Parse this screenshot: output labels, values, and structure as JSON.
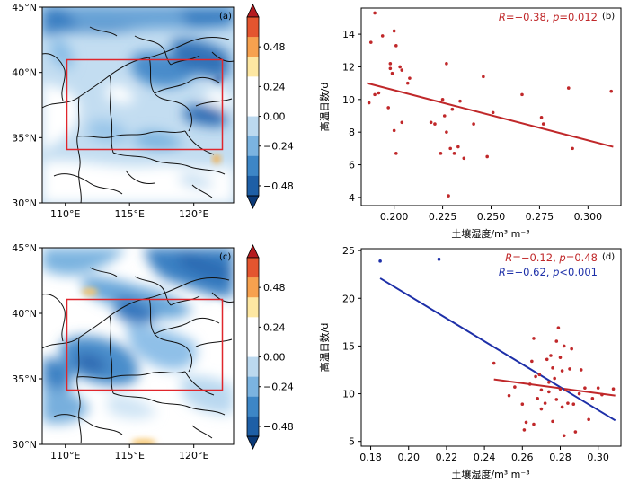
{
  "colormap": {
    "levels": [
      -0.48,
      -0.24,
      0.0,
      0.24,
      0.48
    ],
    "level_labels": [
      "−0.48",
      "−0.24",
      "0.00",
      "0.24",
      "0.48"
    ],
    "colors": [
      "#0b3a78",
      "#1e5fa6",
      "#3d86c6",
      "#7bb3e0",
      "#bcd9ef",
      "#ffffff",
      "#ffffff",
      "#fde7a2",
      "#f6a14f",
      "#e4552f",
      "#b41b1f"
    ]
  },
  "maps": [
    {
      "label": "(a)",
      "lat_ticks": [
        "45°N",
        "40°N",
        "35°N",
        "30°N"
      ],
      "lon_ticks": [
        "110°E",
        "115°E",
        "120°E"
      ],
      "box": {
        "lon": [
          110,
          122
        ],
        "lat": [
          34,
          41
        ]
      }
    },
    {
      "label": "(c)",
      "lat_ticks": [
        "45°N",
        "40°N",
        "35°N",
        "30°N"
      ],
      "lon_ticks": [
        "110°E",
        "115°E",
        "120°E"
      ],
      "box": {
        "lon": [
          110,
          122
        ],
        "lat": [
          34,
          41
        ]
      }
    }
  ],
  "chart_data": [
    {
      "type": "scatter",
      "label": "(b)",
      "xlabel": "土壤湿度/m³ m⁻³",
      "ylabel": "高温日数/d",
      "xlim": [
        0.183,
        0.317
      ],
      "ylim": [
        3.5,
        15.6
      ],
      "xticks": [
        0.2,
        0.225,
        0.25,
        0.275,
        0.3
      ],
      "xtick_labels": [
        "0.200",
        "0.225",
        "0.250",
        "0.275",
        "0.300"
      ],
      "yticks": [
        4,
        6,
        8,
        10,
        12,
        14
      ],
      "ytick_labels": [
        "4",
        "6",
        "8",
        "10",
        "12",
        "14"
      ],
      "stats": [
        {
          "r_label": "R",
          "r_value": "=−0.38",
          "p_label": "p",
          "p_value": "=0.012",
          "color": "#c0282a"
        }
      ],
      "series": [
        {
          "name": "red",
          "color": "#c0282a",
          "points": [
            [
              0.187,
              9.8
            ],
            [
              0.188,
              13.5
            ],
            [
              0.19,
              15.3
            ],
            [
              0.19,
              10.3
            ],
            [
              0.192,
              10.4
            ],
            [
              0.194,
              13.9
            ],
            [
              0.197,
              9.5
            ],
            [
              0.198,
              11.9
            ],
            [
              0.198,
              12.2
            ],
            [
              0.199,
              11.6
            ],
            [
              0.2,
              14.2
            ],
            [
              0.2,
              8.1
            ],
            [
              0.201,
              6.7
            ],
            [
              0.201,
              13.3
            ],
            [
              0.203,
              12.0
            ],
            [
              0.204,
              11.8
            ],
            [
              0.204,
              8.6
            ],
            [
              0.207,
              11.0
            ],
            [
              0.208,
              11.3
            ],
            [
              0.219,
              8.6
            ],
            [
              0.221,
              8.5
            ],
            [
              0.224,
              6.7
            ],
            [
              0.225,
              10.0
            ],
            [
              0.226,
              9.0
            ],
            [
              0.227,
              12.2
            ],
            [
              0.227,
              8.0
            ],
            [
              0.228,
              4.1
            ],
            [
              0.229,
              7.0
            ],
            [
              0.23,
              9.4
            ],
            [
              0.231,
              6.7
            ],
            [
              0.233,
              7.1
            ],
            [
              0.234,
              9.9
            ],
            [
              0.236,
              6.4
            ],
            [
              0.241,
              8.5
            ],
            [
              0.246,
              11.4
            ],
            [
              0.248,
              6.5
            ],
            [
              0.251,
              9.2
            ],
            [
              0.266,
              10.3
            ],
            [
              0.276,
              8.9
            ],
            [
              0.277,
              8.5
            ],
            [
              0.29,
              10.7
            ],
            [
              0.292,
              7.0
            ],
            [
              0.312,
              10.5
            ]
          ],
          "fit": [
            [
              0.186,
              11.0
            ],
            [
              0.313,
              7.1
            ]
          ]
        }
      ]
    },
    {
      "type": "scatter",
      "label": "(d)",
      "xlabel": "土壤湿度/m³ m⁻³",
      "ylabel": "高温日数/d",
      "xlim": [
        0.175,
        0.312
      ],
      "ylim": [
        4.5,
        25.2
      ],
      "xticks": [
        0.18,
        0.2,
        0.22,
        0.24,
        0.26,
        0.28,
        0.3
      ],
      "xtick_labels": [
        "0.18",
        "0.20",
        "0.22",
        "0.24",
        "0.26",
        "0.28",
        "0.30"
      ],
      "yticks": [
        5,
        10,
        15,
        20,
        25
      ],
      "ytick_labels": [
        "5",
        "10",
        "15",
        "20",
        "25"
      ],
      "stats": [
        {
          "r_label": "R",
          "r_value": "=−0.12",
          "p_label": "p",
          "p_value": "=0.48",
          "color": "#c0282a"
        },
        {
          "r_label": "R",
          "r_value": "=−0.62",
          "p_label": "p",
          "p_value": "<0.001",
          "color": "#1d2fa8"
        }
      ],
      "series": [
        {
          "name": "red",
          "color": "#c0282a",
          "points": [
            [
              0.245,
              13.2
            ],
            [
              0.253,
              9.8
            ],
            [
              0.256,
              10.7
            ],
            [
              0.26,
              8.9
            ],
            [
              0.261,
              6.2
            ],
            [
              0.262,
              7.0
            ],
            [
              0.264,
              11.0
            ],
            [
              0.265,
              13.4
            ],
            [
              0.266,
              15.8
            ],
            [
              0.266,
              6.8
            ],
            [
              0.267,
              11.8
            ],
            [
              0.268,
              9.5
            ],
            [
              0.269,
              12.0
            ],
            [
              0.27,
              10.4
            ],
            [
              0.27,
              8.4
            ],
            [
              0.272,
              9.0
            ],
            [
              0.273,
              13.6
            ],
            [
              0.274,
              11.2
            ],
            [
              0.274,
              10.2
            ],
            [
              0.275,
              14.0
            ],
            [
              0.276,
              12.7
            ],
            [
              0.276,
              7.1
            ],
            [
              0.277,
              11.6
            ],
            [
              0.278,
              15.5
            ],
            [
              0.278,
              9.4
            ],
            [
              0.279,
              16.9
            ],
            [
              0.28,
              13.8
            ],
            [
              0.28,
              10.5
            ],
            [
              0.281,
              12.4
            ],
            [
              0.281,
              8.6
            ],
            [
              0.282,
              15.0
            ],
            [
              0.282,
              5.6
            ],
            [
              0.283,
              10.4
            ],
            [
              0.284,
              9.0
            ],
            [
              0.285,
              12.6
            ],
            [
              0.286,
              14.7
            ],
            [
              0.287,
              8.9
            ],
            [
              0.288,
              6.0
            ],
            [
              0.29,
              10.0
            ],
            [
              0.291,
              12.5
            ],
            [
              0.293,
              10.6
            ],
            [
              0.295,
              7.3
            ],
            [
              0.297,
              9.5
            ],
            [
              0.3,
              10.6
            ],
            [
              0.302,
              9.9
            ],
            [
              0.308,
              10.5
            ]
          ],
          "fit": [
            [
              0.245,
              11.5
            ],
            [
              0.309,
              9.8
            ]
          ]
        },
        {
          "name": "blue",
          "color": "#1d2fa8",
          "points": [
            [
              0.185,
              23.9
            ],
            [
              0.216,
              24.1
            ]
          ],
          "fit": [
            [
              0.185,
              22.1
            ],
            [
              0.309,
              7.2
            ]
          ]
        }
      ]
    }
  ]
}
